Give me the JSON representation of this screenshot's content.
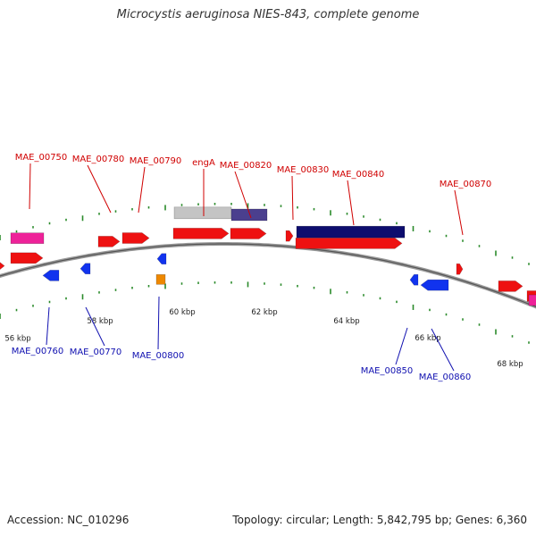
{
  "title": "Microcystis aeruginosa NIES-843, complete genome",
  "footer": {
    "accession": "Accession: NC_010296",
    "topology": "Topology: circular; Length: 5,842,795 bp; Genes: 6,360"
  },
  "colors": {
    "forward_label": "#d00000",
    "reverse_label": "#1010b0",
    "forward_cds": "#ee1111",
    "reverse_cds": "#1133ee",
    "rrna": "#ee2299",
    "trna": "#ee8800",
    "backbone": "#888888",
    "tick": "#2a8a2a",
    "feature_light": "#c4c4c4",
    "feature_purple": "#4b3f8e",
    "feature_navy": "#0d0d6e"
  },
  "scale_labels": [
    "56 kbp",
    "58 kbp",
    "60 kbp",
    "62 kbp",
    "64 kbp",
    "66 kbp",
    "68 kbp"
  ],
  "top_labels": [
    "MAE_00750",
    "MAE_00780",
    "MAE_00790",
    "engA",
    "MAE_00820",
    "MAE_00830",
    "MAE_00840",
    "MAE_00870"
  ],
  "bottom_labels": [
    "MAE_00760",
    "MAE_00770",
    "MAE_00800",
    "MAE_00850",
    "MAE_00860"
  ]
}
